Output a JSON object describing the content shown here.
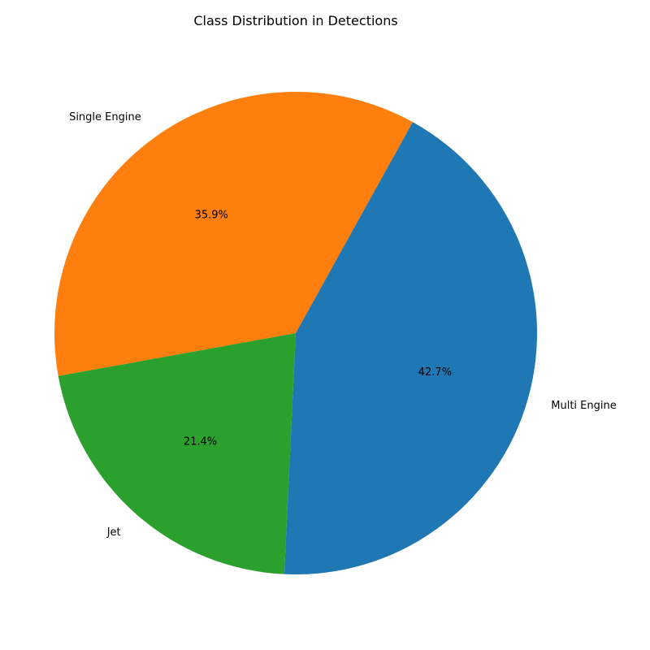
{
  "chart_data": {
    "type": "pie",
    "title": "Class Distribution in Detections",
    "slices": [
      {
        "label": "Single Engine",
        "value": 35.9,
        "pct_text": "35.9%",
        "color": "#ff7f0e"
      },
      {
        "label": "Jet",
        "value": 21.4,
        "pct_text": "21.4%",
        "color": "#2ca02c"
      },
      {
        "label": "Multi Engine",
        "value": 42.7,
        "pct_text": "42.7%",
        "color": "#1f77b4"
      }
    ]
  }
}
